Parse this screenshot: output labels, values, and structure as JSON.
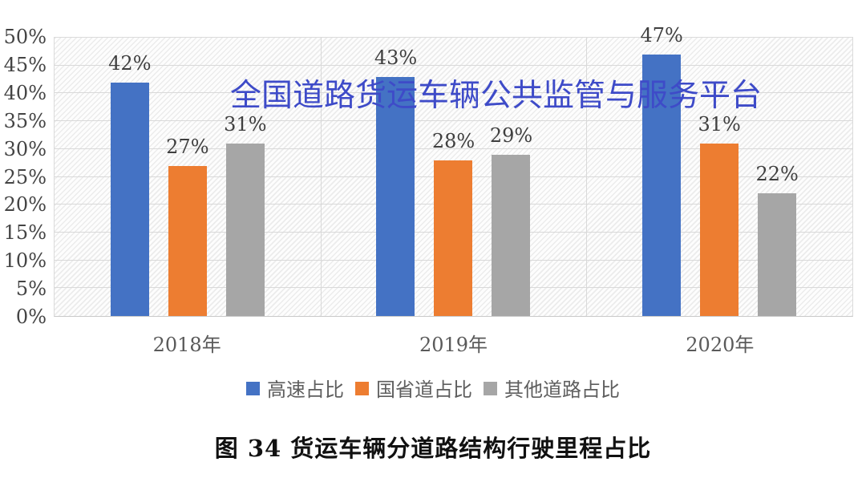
{
  "watermark": {
    "text": "全国道路货运车辆公共监管与服务平台",
    "color": "#3E4BC8"
  },
  "caption": "图 34 货运车辆分道路结构行驶里程占比",
  "chart_data": {
    "type": "bar",
    "title": "",
    "xlabel": "",
    "ylabel": "",
    "categories": [
      "2018年",
      "2019年",
      "2020年"
    ],
    "series": [
      {
        "name": "高速占比",
        "color": "#4472C4",
        "values": [
          42,
          43,
          47
        ]
      },
      {
        "name": "国省道占比",
        "color": "#ED7D31",
        "values": [
          27,
          28,
          31
        ]
      },
      {
        "name": "其他道路占比",
        "color": "#A6A6A6",
        "values": [
          31,
          29,
          22
        ]
      }
    ],
    "value_suffix": "%",
    "ylim": [
      0,
      50
    ],
    "ytick_step": 5,
    "ytick_labels": [
      "0%",
      "5%",
      "10%",
      "15%",
      "20%",
      "25%",
      "30%",
      "35%",
      "40%",
      "45%",
      "50%"
    ],
    "grid": true,
    "legend_position": "bottom"
  }
}
